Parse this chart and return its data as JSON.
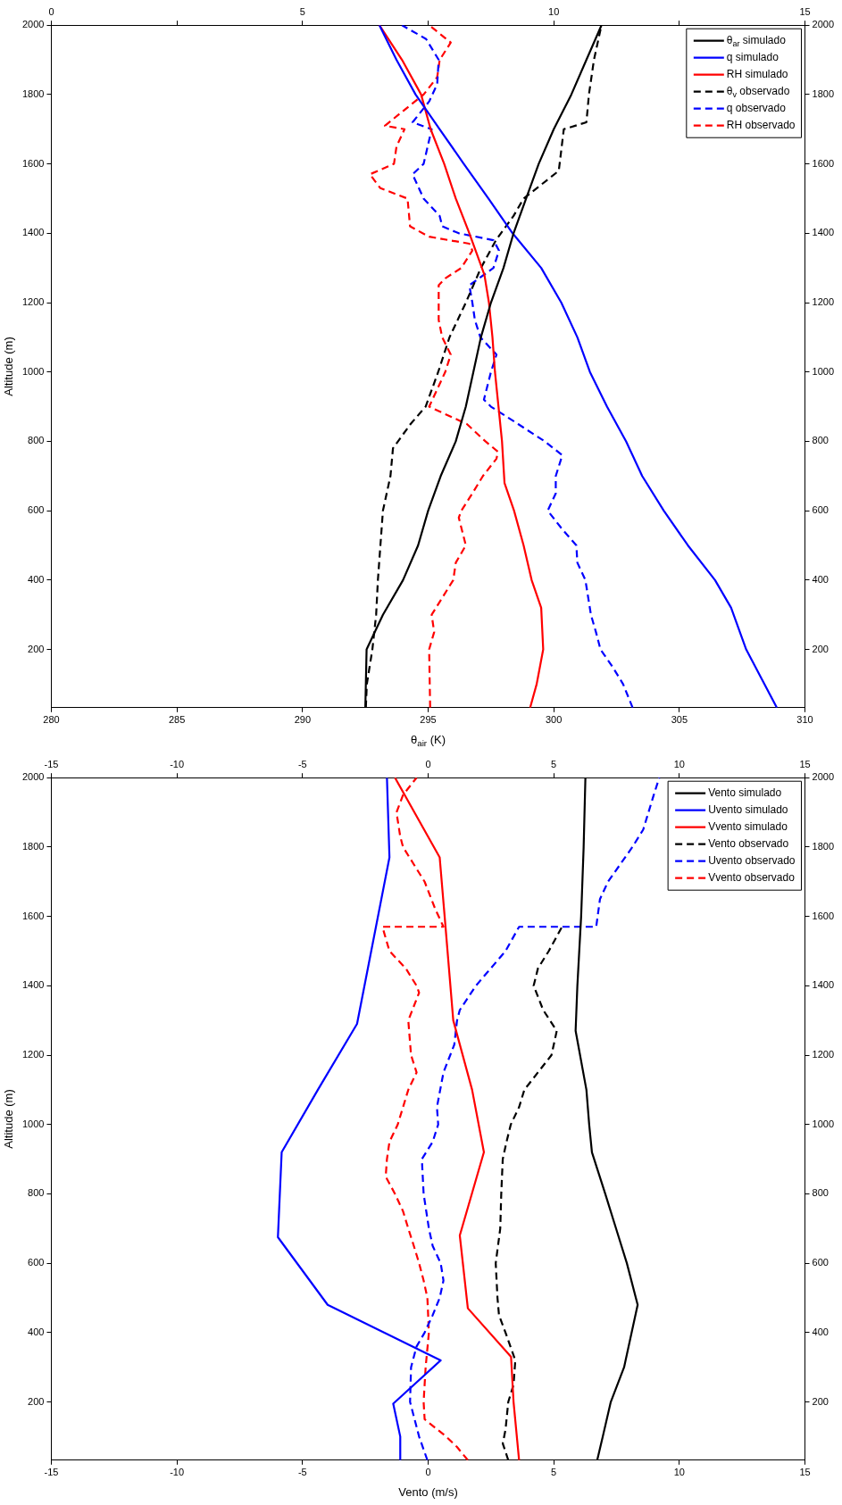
{
  "chart_data": [
    {
      "type": "line",
      "xlabel": "θ$_{air}$ (K)",
      "ylabel": "Altitude (m)",
      "legend": "top right",
      "xlim": [
        280,
        310
      ],
      "xticks": [
        280,
        285,
        290,
        295,
        300,
        305,
        310
      ],
      "x2lim": [
        0,
        15
      ],
      "x2ticks": [
        0,
        {
          "value": 2.5,
          "label": null
        },
        5,
        {
          "value": 7.5,
          "label": null
        },
        10,
        {
          "value": 12.5,
          "label": null
        },
        15
      ],
      "ylim": [
        32,
        2000
      ],
      "yticks": [
        200,
        400,
        600,
        800,
        1000,
        1200,
        1400,
        1600,
        1800,
        2000
      ],
      "y2lim": [
        32,
        2000
      ],
      "y2ticks": [
        200,
        400,
        600,
        800,
        1000,
        1200,
        1400,
        1600,
        1800,
        2000
      ],
      "series": [
        {
          "name": "θ$_{ar}$ simulado",
          "color": "#000000",
          "line_style": "solid",
          "x": [
            292.5,
            292.55,
            293.2,
            294.0,
            294.6,
            295.0,
            295.5,
            296.1,
            296.5,
            296.8,
            297.1,
            297.5,
            298.0,
            298.4,
            298.9,
            299.4,
            300.0,
            300.7,
            301.3,
            301.9
          ],
          "values": [
            32,
            200,
            300,
            400,
            500,
            600,
            700,
            800,
            900,
            1000,
            1100,
            1200,
            1300,
            1400,
            1500,
            1600,
            1700,
            1800,
            1900,
            2000
          ]
        },
        {
          "name": "q simulado",
          "color": "#0000ff",
          "line_style": "solid",
          "axis": "x2",
          "x": [
            14.44,
            13.83,
            13.53,
            13.21,
            12.67,
            12.19,
            11.76,
            11.44,
            11.06,
            10.72,
            10.47,
            10.15,
            9.75,
            9.18,
            8.7,
            8.21,
            7.73,
            7.25,
            6.87,
            6.53
          ],
          "values": [
            32,
            200,
            320,
            400,
            500,
            600,
            700,
            800,
            900,
            1000,
            1100,
            1200,
            1300,
            1400,
            1500,
            1600,
            1700,
            1800,
            1900,
            2000
          ]
        },
        {
          "name": "RH simulado",
          "color": "#ff0000",
          "line_style": "solid",
          "axis": "x2",
          "x": [
            9.53,
            9.66,
            9.79,
            9.75,
            9.56,
            9.4,
            9.21,
            9.02,
            8.97,
            8.83,
            8.78,
            8.71,
            8.62,
            8.32,
            8.05,
            7.82,
            7.55,
            7.36,
            6.98,
            6.53
          ],
          "values": [
            32,
            100,
            200,
            320,
            400,
            500,
            600,
            680,
            800,
            1000,
            1100,
            1200,
            1280,
            1400,
            1500,
            1600,
            1700,
            1800,
            1900,
            2000
          ]
        },
        {
          "name": "θ$_{v}$ observado",
          "color": "#000000",
          "line_style": "dashed",
          "x": [
            292.52,
            292.56,
            292.78,
            292.93,
            293.0,
            293.1,
            293.2,
            293.5,
            293.6,
            294.3,
            294.9,
            295.4,
            295.85,
            296.5,
            297.1,
            297.7,
            298.4,
            298.8,
            300.2,
            300.4,
            301.3,
            301.4,
            301.6,
            301.9
          ],
          "values": [
            32,
            100,
            200,
            300,
            400,
            500,
            600,
            700,
            780,
            850,
            900,
            1000,
            1100,
            1200,
            1300,
            1380,
            1450,
            1500,
            1580,
            1700,
            1720,
            1800,
            1900,
            2000
          ]
        },
        {
          "name": "q observado",
          "color": "#0000ff",
          "line_style": "dashed",
          "axis": "x2",
          "x": [
            11.57,
            11.38,
            11.17,
            10.93,
            10.84,
            10.74,
            10.63,
            10.47,
            10.45,
            10.15,
            9.88,
            10.04,
            10.04,
            10.17,
            9.82,
            9.29,
            8.75,
            8.61,
            8.75,
            8.86,
            8.54,
            8.43,
            8.38,
            8.32,
            8.8,
            8.91,
            8.8,
            8.11,
            7.78,
            7.73,
            7.41,
            7.19,
            7.41,
            7.57,
            7.19,
            7.52,
            7.68,
            7.71,
            7.46,
            6.98
          ],
          "values": [
            32,
            100,
            150,
            200,
            250,
            300,
            400,
            450,
            500,
            550,
            600,
            650,
            700,
            760,
            800,
            850,
            900,
            920,
            1000,
            1050,
            1100,
            1150,
            1200,
            1250,
            1300,
            1350,
            1380,
            1400,
            1420,
            1450,
            1500,
            1570,
            1600,
            1700,
            1720,
            1780,
            1830,
            1900,
            1960,
            2000
          ]
        },
        {
          "name": "RH observado",
          "color": "#ff0000",
          "line_style": "dashed",
          "axis": "x2",
          "x": [
            7.54,
            7.52,
            7.62,
            7.57,
            8.0,
            8.05,
            8.25,
            8.11,
            8.16,
            8.38,
            8.59,
            8.86,
            8.89,
            8.64,
            8.27,
            7.52,
            7.68,
            7.84,
            7.95,
            7.78,
            7.71,
            7.71,
            7.84,
            8.16,
            8.38,
            8.32,
            7.52,
            7.14,
            7.09,
            6.55,
            6.34,
            6.82,
            6.87,
            7.03,
            6.64,
            6.98,
            7.41,
            7.68,
            7.73,
            7.95,
            7.52
          ],
          "values": [
            32,
            200,
            250,
            300,
            400,
            450,
            500,
            580,
            600,
            650,
            700,
            750,
            770,
            800,
            850,
            900,
            950,
            1000,
            1050,
            1100,
            1150,
            1250,
            1270,
            1300,
            1350,
            1370,
            1390,
            1420,
            1500,
            1530,
            1570,
            1600,
            1650,
            1700,
            1710,
            1750,
            1800,
            1850,
            1900,
            1950,
            2000
          ]
        }
      ]
    },
    {
      "type": "line",
      "xlabel": "Vento (m/s)",
      "ylabel": "Altitude (m)",
      "legend": "top right",
      "xlim": [
        -15,
        15
      ],
      "xticks": [
        -15,
        -10,
        -5,
        0,
        5,
        10,
        15
      ],
      "x2lim": [
        -15,
        15
      ],
      "x2ticks": [
        -15,
        -10,
        -5,
        0,
        5,
        10,
        15
      ],
      "ylim": [
        32,
        2000
      ],
      "yticks": [
        200,
        400,
        600,
        800,
        1000,
        1200,
        1400,
        1600,
        1800,
        2000
      ],
      "y2lim": [
        32,
        2000
      ],
      "y2ticks": [
        200,
        400,
        600,
        800,
        1000,
        1200,
        1400,
        1600,
        1800,
        2000
      ],
      "series": [
        {
          "name": "Vento simulado",
          "color": "#000000",
          "line_style": "solid",
          "x": [
            6.73,
            6.95,
            7.27,
            7.8,
            8.34,
            7.91,
            7.48,
            7.05,
            6.52,
            6.41,
            6.3,
            5.87,
            5.94,
            6.09,
            6.19,
            6.26
          ],
          "values": [
            32,
            100,
            200,
            300,
            480,
            600,
            700,
            800,
            920,
            1000,
            1100,
            1270,
            1400,
            1600,
            1800,
            2000
          ]
        },
        {
          "name": "Uvento simulado",
          "color": "#0000ff",
          "line_style": "solid",
          "x": [
            -1.11,
            -1.11,
            -1.39,
            0.5,
            -4.0,
            -5.98,
            -5.83,
            -4.39,
            -2.83,
            -1.54,
            -1.64
          ],
          "values": [
            32,
            100,
            195,
            320,
            480,
            675,
            920,
            1100,
            1290,
            1770,
            2000
          ]
        },
        {
          "name": "Vvento simulado",
          "color": "#ff0000",
          "line_style": "solid",
          "x": [
            3.62,
            3.4,
            3.3,
            1.58,
            1.26,
            2.22,
            1.75,
            1.0,
            0.68,
            0.46,
            -1.32
          ],
          "values": [
            32,
            200,
            330,
            470,
            680,
            920,
            1100,
            1300,
            1580,
            1770,
            2000
          ]
        },
        {
          "name": "Vento observado",
          "color": "#000000",
          "line_style": "dashed",
          "x": [
            3.19,
            2.97,
            3.08,
            3.19,
            3.4,
            3.47,
            3.08,
            2.82,
            2.76,
            2.69,
            2.87,
            2.91,
            2.97,
            3.12,
            3.29,
            3.62,
            3.83,
            4.37,
            4.91,
            5.12,
            4.58,
            4.2,
            4.37,
            4.8,
            5.33
          ],
          "values": [
            32,
            80,
            120,
            200,
            250,
            320,
            400,
            450,
            500,
            600,
            700,
            800,
            900,
            950,
            1000,
            1050,
            1100,
            1150,
            1200,
            1270,
            1330,
            1400,
            1450,
            1500,
            1570
          ]
        },
        {
          "name": "Uvento observado",
          "color": "#0000ff",
          "line_style": "dashed",
          "x": [
            -0.03,
            -0.36,
            -0.72,
            -0.68,
            -0.46,
            -0.14,
            0.18,
            0.46,
            0.61,
            0.5,
            0.18,
            0.03,
            -0.18,
            -0.25,
            0.18,
            0.4,
            0.35,
            0.61,
            1.04,
            1.15,
            1.26,
            1.9,
            3.08,
            3.62,
            6.69,
            6.84,
            7.16,
            8.13,
            8.56,
            8.77,
            8.98,
            9.2
          ],
          "values": [
            32,
            100,
            200,
            300,
            360,
            400,
            450,
            500,
            550,
            600,
            650,
            700,
            800,
            900,
            950,
            1000,
            1050,
            1150,
            1230,
            1300,
            1330,
            1400,
            1500,
            1570,
            1570,
            1650,
            1700,
            1800,
            1850,
            1900,
            1950,
            2000
          ]
        },
        {
          "name": "Vvento observado",
          "color": "#ff0000",
          "line_style": "dashed",
          "x": [
            1.58,
            1.15,
            0.72,
            -0.14,
            -0.18,
            -0.1,
            0.03,
            -0.03,
            -0.18,
            -0.36,
            -0.57,
            -0.79,
            -1.0,
            -1.32,
            -1.69,
            -1.64,
            -1.54,
            -1.21,
            -1.0,
            -0.79,
            -0.46,
            -0.68,
            -0.79,
            -0.36,
            -0.46,
            -0.89,
            -1.54,
            -1.82,
            0.61,
            0.29,
            -0.14,
            -1.0,
            -1.11,
            -1.26,
            -1.0,
            -0.46
          ],
          "values": [
            32,
            70,
            100,
            150,
            200,
            300,
            400,
            500,
            550,
            600,
            650,
            700,
            750,
            800,
            850,
            900,
            950,
            1000,
            1050,
            1100,
            1150,
            1200,
            1300,
            1380,
            1400,
            1450,
            1500,
            1570,
            1570,
            1620,
            1700,
            1800,
            1830,
            1900,
            1950,
            2000
          ]
        }
      ]
    }
  ]
}
